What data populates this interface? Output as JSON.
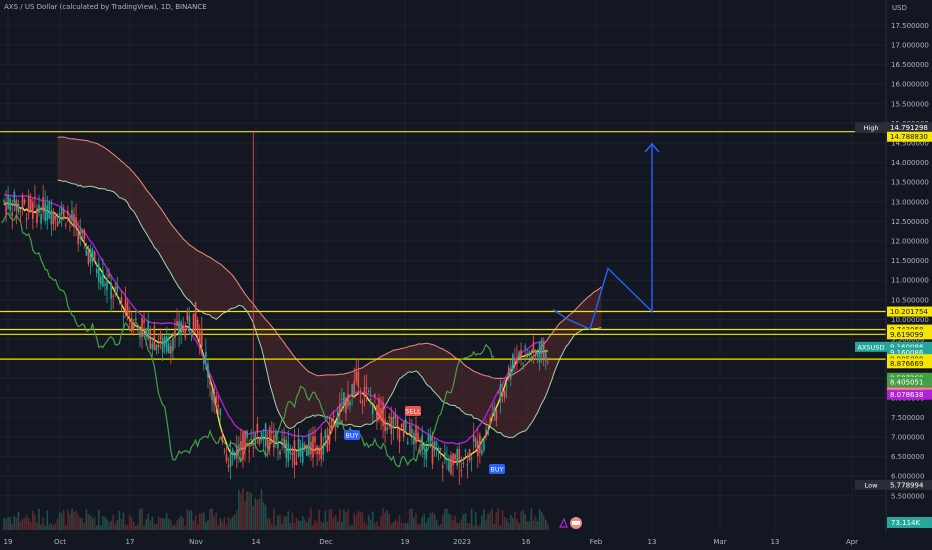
{
  "header": {
    "title": "AXS / US Dollar (calculated by TradingView), 1D, BINANCE",
    "currency": "USD"
  },
  "chart_data": {
    "type": "candlestick",
    "title": "AXS / US Dollar (calculated by TradingView), 1D, BINANCE",
    "ylabel": "USD",
    "ylim": [
      5.1,
      18.4
    ],
    "y_ticks": [
      "17.500000",
      "17.000000",
      "16.500000",
      "16.000000",
      "15.500000",
      "15.000000",
      "14.500000",
      "14.000000",
      "13.500000",
      "13.000000",
      "12.500000",
      "12.000000",
      "11.500000",
      "11.000000",
      "10.500000",
      "10.000000",
      "9.500000",
      "9.000000",
      "8.500000",
      "8.000000",
      "7.500000",
      "7.000000",
      "6.500000",
      "6.000000",
      "5.500000"
    ],
    "x_ticks": [
      "19",
      "Oct",
      "17",
      "Nov",
      "14",
      "Dec",
      "19",
      "2023",
      "16",
      "Feb",
      "13",
      "Mar",
      "13",
      "Apr"
    ],
    "horizontal_lines": [
      14.78883,
      10.201754,
      9.743068,
      9.619099,
      8.985898
    ],
    "candles_ohlc_sampled": [
      [
        "Sep 19",
        13.4,
        13.9,
        12.6,
        13.0
      ],
      [
        "Sep 26",
        12.9,
        13.3,
        12.5,
        12.8
      ],
      [
        "Oct 3",
        12.8,
        13.3,
        12.4,
        12.7
      ],
      [
        "Oct 10",
        12.4,
        12.6,
        10.9,
        11.2
      ],
      [
        "Oct 17",
        11.0,
        11.5,
        9.5,
        10.0
      ],
      [
        "Oct 24",
        9.5,
        10.4,
        9.0,
        9.3
      ],
      [
        "Oct 31",
        9.7,
        10.9,
        9.0,
        10.1
      ],
      [
        "Nov 7",
        9.6,
        10.6,
        5.9,
        6.5
      ],
      [
        "Nov 14",
        6.4,
        14.7,
        6.2,
        7.1
      ],
      [
        "Nov 21",
        7.1,
        7.5,
        6.4,
        6.6
      ],
      [
        "Nov 28",
        6.9,
        7.2,
        6.5,
        6.8
      ],
      [
        "Dec 5",
        8.1,
        9.7,
        7.3,
        8.4
      ],
      [
        "Dec 12",
        8.3,
        8.9,
        7.0,
        7.4
      ],
      [
        "Dec 19",
        7.2,
        7.6,
        6.8,
        6.9
      ],
      [
        "Dec 26",
        6.6,
        6.9,
        6.1,
        6.3
      ],
      [
        "Jan 2",
        6.4,
        7.0,
        6.2,
        6.9
      ],
      [
        "Jan 9",
        7.7,
        9.6,
        7.5,
        9.1
      ],
      [
        "Jan 16",
        8.8,
        9.6,
        8.4,
        9.16
      ]
    ],
    "series": [
      {
        "name": "Conversion Line",
        "color": "#f0e442"
      },
      {
        "name": "Base Line",
        "color": "#b022d8"
      },
      {
        "name": "Lagging Span",
        "color": "#43a047"
      },
      {
        "name": "Leading Span A",
        "color": "#a5d6a7"
      },
      {
        "name": "Leading Span B",
        "color": "#f28b82"
      }
    ],
    "price_labels": [
      {
        "text": "High",
        "value": "14.791298",
        "color": "#2a2e39"
      },
      {
        "text": "",
        "value": "14.788830",
        "color": "#f7e600"
      },
      {
        "text": "",
        "value": "10.201754",
        "color": "#f7e600"
      },
      {
        "text": "",
        "value": "9.743068",
        "color": "#f7e600"
      },
      {
        "text": "",
        "value": "9.619099",
        "color": "#f7e600"
      },
      {
        "text": "AXSUSD",
        "value": "9.160086",
        "sub": "08:06:15",
        "color": "#26a69a"
      },
      {
        "text": "",
        "value": "9.160086",
        "color": "#26a69a"
      },
      {
        "text": "",
        "value": "8.985898",
        "color": "#f7e600"
      },
      {
        "text": "",
        "value": "8.876669",
        "color": "#f7e600"
      },
      {
        "text": "",
        "value": "8.507268",
        "color": "#43a047"
      },
      {
        "text": "",
        "value": "8.405051",
        "color": "#43a047"
      },
      {
        "text": "",
        "value": "8.142668",
        "color": "#f28b82"
      },
      {
        "text": "",
        "value": "8.078638",
        "color": "#b022d8"
      },
      {
        "text": "Low",
        "value": "5.778994",
        "color": "#2a2e39"
      }
    ],
    "volume_label": "73.114K",
    "annotations": [
      "BUY",
      "SELL",
      "BUY"
    ]
  }
}
